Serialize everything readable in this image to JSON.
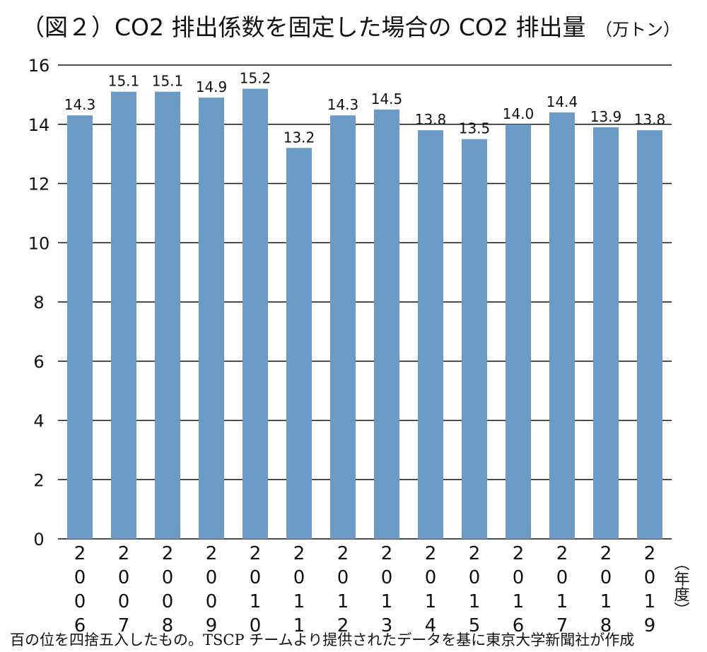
{
  "chart_data": {
    "type": "bar",
    "title": "（図２）CO2 排出係数を固定した場合の CO2 排出量",
    "unit": "（万トン）",
    "x_label": "（年度）",
    "footnote": "百の位を四捨五入したもの。TSCP チームより提供されたデータを基に東京大学新聞社が作成",
    "categories": [
      "2006",
      "2007",
      "2008",
      "2009",
      "2010",
      "2011",
      "2012",
      "2013",
      "2014",
      "2015",
      "2016",
      "2017",
      "2018",
      "2019"
    ],
    "values": [
      14.3,
      15.1,
      15.1,
      14.9,
      15.2,
      13.2,
      14.3,
      14.5,
      13.8,
      13.5,
      14.0,
      14.4,
      13.9,
      13.8
    ],
    "value_labels": [
      "14.3",
      "15.1",
      "15.1",
      "14.9",
      "15.2",
      "13.2",
      "14.3",
      "14.5",
      "13.8",
      "13.5",
      "14.0",
      "14.4",
      "13.9",
      "13.8"
    ],
    "color": "#6b9ac4",
    "ylim": [
      0,
      16
    ],
    "yticks": [
      0,
      2,
      4,
      6,
      8,
      10,
      12,
      14,
      16
    ],
    "grid": true
  }
}
